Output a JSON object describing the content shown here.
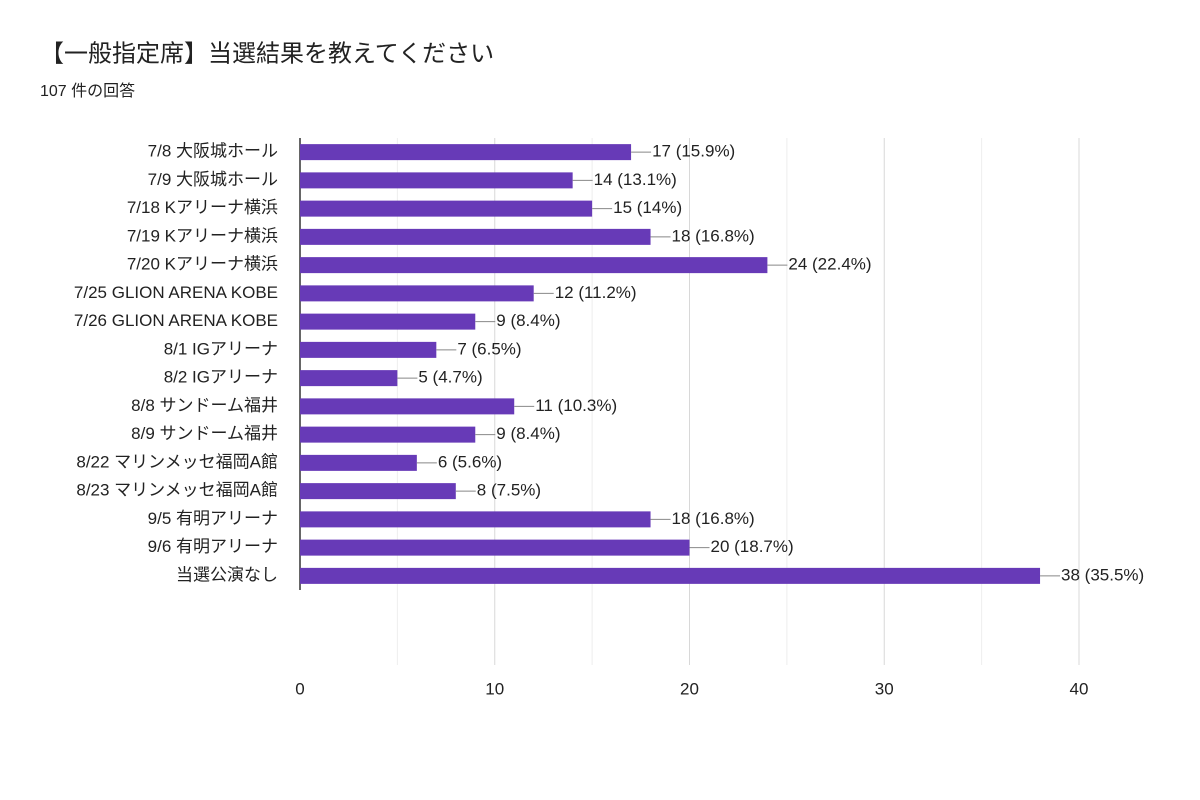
{
  "chart_data": {
    "type": "barh",
    "title": "【一般指定席】当選結果を教えてください",
    "subtitle": "107 件の回答",
    "categories": [
      "7/8 大阪城ホール",
      "7/9 大阪城ホール",
      "7/18 Kアリーナ横浜",
      "7/19 Kアリーナ横浜",
      "7/20 Kアリーナ横浜",
      "7/25 GLION ARENA KOBE",
      "7/26 GLION ARENA KOBE",
      "8/1 IGアリーナ",
      "8/2 IGアリーナ",
      "8/8 サンドーム福井",
      "8/9 サンドーム福井",
      "8/22 マリンメッセ福岡A館",
      "8/23 マリンメッセ福岡A館",
      "9/5 有明アリーナ",
      "9/6 有明アリーナ",
      "当選公演なし"
    ],
    "values": [
      17,
      14,
      15,
      18,
      24,
      12,
      9,
      7,
      5,
      11,
      9,
      6,
      8,
      18,
      20,
      38
    ],
    "value_labels": [
      "17 (15.9%)",
      "14 (13.1%)",
      "15 (14%)",
      "18 (16.8%)",
      "24 (22.4%)",
      "12 (11.2%)",
      "9 (8.4%)",
      "7 (6.5%)",
      "5 (4.7%)",
      "11 (10.3%)",
      "9 (8.4%)",
      "6 (5.6%)",
      "8 (7.5%)",
      "18 (16.8%)",
      "20 (18.7%)",
      "38 (35.5%)"
    ],
    "color": "#673ab7",
    "xlim": [
      0,
      40
    ],
    "xticks": [
      0,
      10,
      20,
      30,
      40
    ],
    "xminorticks": [
      5,
      15,
      25,
      35
    ],
    "grid": true
  }
}
